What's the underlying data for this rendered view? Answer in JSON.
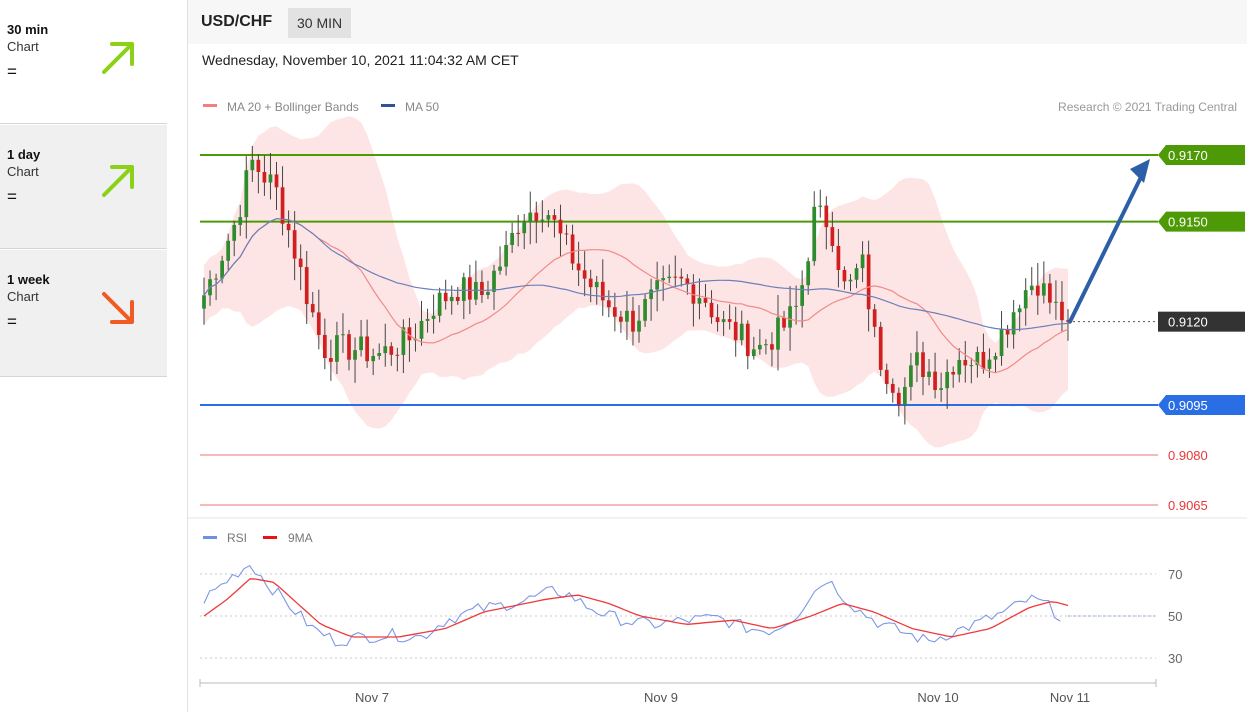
{
  "header": {
    "symbol": "USD/CHF",
    "timeframe": "30 MIN",
    "datetime": "Wednesday, November 10, 2021 11:04:32 AM CET"
  },
  "sidebar": {
    "items": [
      {
        "title": "30 min",
        "subtitle": "Chart",
        "symbol": "=",
        "direction": "up",
        "color": "#8bd117"
      },
      {
        "title": "1 day",
        "subtitle": "Chart",
        "symbol": "=",
        "direction": "up",
        "color": "#8bd117"
      },
      {
        "title": "1 week",
        "subtitle": "Chart",
        "symbol": "=",
        "direction": "down",
        "color": "#f15a22"
      }
    ]
  },
  "chart_data": {
    "type": "candlestick",
    "legend": [
      "MA 20 + Bollinger Bands",
      "MA 50"
    ],
    "legend_colors": [
      "#f08080",
      "#2f5496"
    ],
    "credit": "Research © 2021 Trading Central",
    "price_range": [
      0.906,
      0.9182
    ],
    "current_price": 0.912,
    "levels": [
      {
        "label": "0.9170",
        "value": 0.917,
        "color": "#4d9a06",
        "style": "resistance-box"
      },
      {
        "label": "0.9150",
        "value": 0.915,
        "color": "#4d9a06",
        "style": "resistance-box"
      },
      {
        "label": "0.9120",
        "value": 0.912,
        "color": "#222222",
        "style": "current"
      },
      {
        "label": "0.9095",
        "value": 0.9095,
        "color": "#2a6ee6",
        "style": "support-box"
      },
      {
        "label": "0.9080",
        "value": 0.908,
        "color": "#e83838",
        "style": "support-text"
      },
      {
        "label": "0.9065",
        "value": 0.9065,
        "color": "#e83838",
        "style": "support-text"
      }
    ],
    "arrow_target": 0.917,
    "x_ticks": [
      "Nov 7",
      "Nov 9",
      "Nov 10",
      "Nov 11"
    ],
    "candle_count": 144,
    "close_path": [
      [
        0,
        0.9128
      ],
      [
        8,
        0.915
      ],
      [
        12,
        0.9168
      ],
      [
        18,
        0.916
      ],
      [
        22,
        0.9145
      ],
      [
        26,
        0.9128
      ],
      [
        30,
        0.9112
      ],
      [
        38,
        0.9112
      ],
      [
        44,
        0.911
      ],
      [
        52,
        0.9115
      ],
      [
        58,
        0.9125
      ],
      [
        64,
        0.913
      ],
      [
        70,
        0.9128
      ],
      [
        76,
        0.914
      ],
      [
        80,
        0.9152
      ],
      [
        86,
        0.9155
      ],
      [
        90,
        0.9145
      ],
      [
        96,
        0.9133
      ],
      [
        102,
        0.9125
      ],
      [
        108,
        0.912
      ],
      [
        114,
        0.9128
      ],
      [
        120,
        0.9132
      ],
      [
        126,
        0.9128
      ],
      [
        130,
        0.912
      ],
      [
        136,
        0.9115
      ],
      [
        140,
        0.9112
      ],
      [
        146,
        0.9118
      ],
      [
        150,
        0.9125
      ],
      [
        154,
        0.9152
      ],
      [
        158,
        0.915
      ],
      [
        162,
        0.9128
      ],
      [
        166,
        0.9138
      ],
      [
        170,
        0.911
      ],
      [
        176,
        0.9098
      ],
      [
        180,
        0.9108
      ],
      [
        186,
        0.9102
      ],
      [
        190,
        0.911
      ],
      [
        196,
        0.9108
      ],
      [
        202,
        0.9118
      ],
      [
        206,
        0.9128
      ],
      [
        210,
        0.9133
      ],
      [
        214,
        0.9125
      ],
      [
        218,
        0.912
      ]
    ],
    "rsi": {
      "legend": [
        "RSI",
        "9MA"
      ],
      "colors": [
        "#6f8fe0",
        "#ee1111"
      ],
      "y_ticks": [
        70,
        50,
        30
      ],
      "range": [
        20,
        80
      ],
      "path": [
        [
          0,
          58
        ],
        [
          8,
          70
        ],
        [
          12,
          75
        ],
        [
          16,
          66
        ],
        [
          22,
          55
        ],
        [
          28,
          44
        ],
        [
          34,
          38
        ],
        [
          40,
          40
        ],
        [
          48,
          41
        ],
        [
          56,
          40
        ],
        [
          62,
          48
        ],
        [
          70,
          53
        ],
        [
          76,
          55
        ],
        [
          82,
          57
        ],
        [
          90,
          62
        ],
        [
          94,
          60
        ],
        [
          98,
          55
        ],
        [
          104,
          50
        ],
        [
          110,
          47
        ],
        [
          116,
          46
        ],
        [
          124,
          48
        ],
        [
          132,
          49
        ],
        [
          140,
          44
        ],
        [
          146,
          43
        ],
        [
          152,
          50
        ],
        [
          156,
          60
        ],
        [
          160,
          68
        ],
        [
          164,
          60
        ],
        [
          168,
          53
        ],
        [
          174,
          46
        ],
        [
          180,
          42
        ],
        [
          186,
          38
        ],
        [
          192,
          42
        ],
        [
          198,
          46
        ],
        [
          206,
          52
        ],
        [
          212,
          58
        ],
        [
          216,
          56
        ],
        [
          220,
          50
        ]
      ],
      "ma_path": [
        [
          0,
          50
        ],
        [
          6,
          58
        ],
        [
          12,
          68
        ],
        [
          18,
          66
        ],
        [
          24,
          56
        ],
        [
          30,
          46
        ],
        [
          38,
          40
        ],
        [
          50,
          40
        ],
        [
          62,
          44
        ],
        [
          72,
          52
        ],
        [
          80,
          55
        ],
        [
          88,
          58
        ],
        [
          96,
          60
        ],
        [
          104,
          56
        ],
        [
          112,
          50
        ],
        [
          124,
          46
        ],
        [
          136,
          48
        ],
        [
          146,
          44
        ],
        [
          156,
          50
        ],
        [
          164,
          56
        ],
        [
          172,
          52
        ],
        [
          182,
          44
        ],
        [
          192,
          40
        ],
        [
          202,
          44
        ],
        [
          212,
          54
        ],
        [
          218,
          57
        ],
        [
          222,
          55
        ]
      ]
    }
  }
}
